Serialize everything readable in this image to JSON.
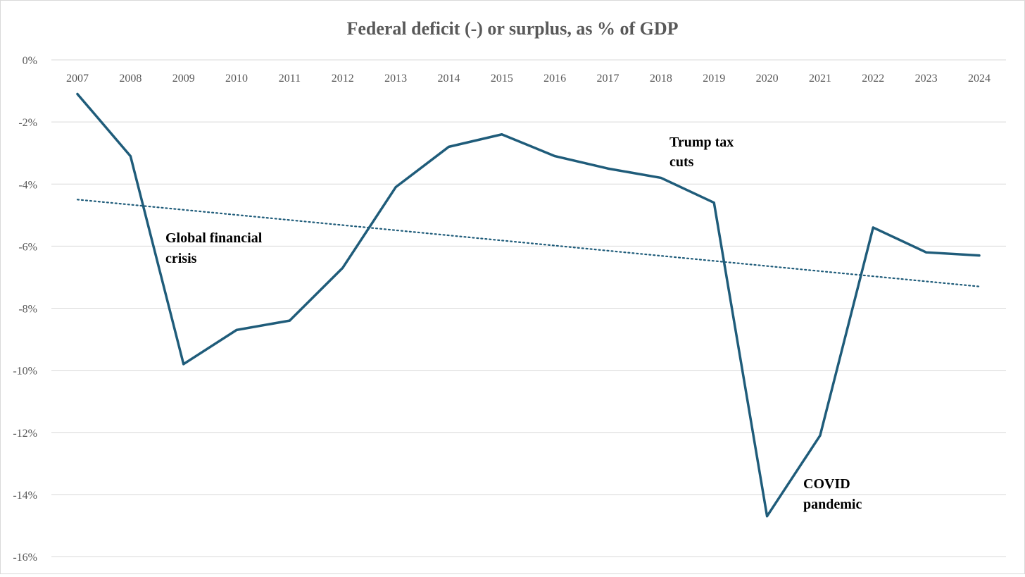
{
  "chart_data": {
    "type": "line",
    "title": "Federal deficit (-) or surplus, as % of GDP",
    "xlabel": "",
    "ylabel": "",
    "x": [
      "2007",
      "2008",
      "2009",
      "2010",
      "2011",
      "2012",
      "2013",
      "2014",
      "2015",
      "2016",
      "2017",
      "2018",
      "2019",
      "2020",
      "2021",
      "2022",
      "2023",
      "2024"
    ],
    "series": [
      {
        "values": [
          -1.1,
          -3.1,
          -9.8,
          -8.7,
          -8.4,
          -6.7,
          -4.1,
          -2.8,
          -2.4,
          -3.1,
          -3.5,
          -3.8,
          -4.6,
          -14.7,
          -12.1,
          -5.4,
          -6.2,
          -6.3
        ],
        "color": "#1f5c7a"
      }
    ],
    "trendline": {
      "style": "dotted",
      "color": "#1f5c7a",
      "start": -4.5,
      "end": -7.3
    },
    "yticks": [
      "0%",
      "-2%",
      "-4%",
      "-6%",
      "-8%",
      "-10%",
      "-12%",
      "-14%",
      "-16%"
    ],
    "ytick_values": [
      0,
      -2,
      -4,
      -6,
      -8,
      -10,
      -12,
      -14,
      -16
    ],
    "ylim": [
      -16,
      0
    ],
    "x_axis_position": "top",
    "grid": true,
    "annotations": [
      {
        "lines": [
          "Global financial",
          "crisis"
        ]
      },
      {
        "lines": [
          "Trump tax",
          "cuts"
        ]
      },
      {
        "lines": [
          "COVID",
          "pandemic"
        ]
      }
    ]
  }
}
